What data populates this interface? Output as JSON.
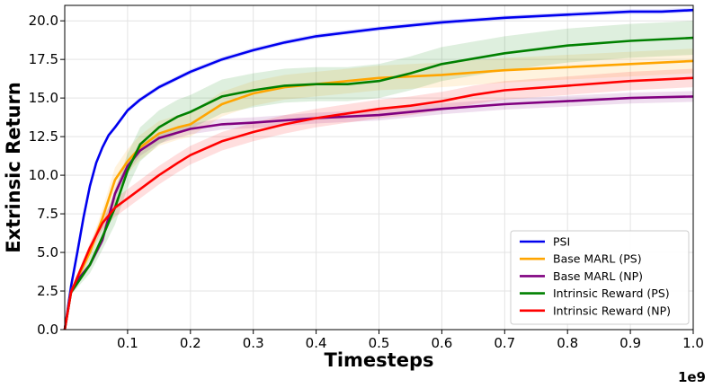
{
  "chart_data": {
    "type": "line",
    "xlabel": "Timesteps",
    "ylabel": "Extrinsic Return",
    "x_multiplier_label": "1e9",
    "xlim": [
      0.0,
      1.0
    ],
    "ylim": [
      0.0,
      21.0
    ],
    "xticks": [
      "0.1",
      "0.2",
      "0.3",
      "0.4",
      "0.5",
      "0.6",
      "0.7",
      "0.8",
      "0.9",
      "1.0"
    ],
    "yticks": [
      "0.0",
      "2.5",
      "5.0",
      "7.5",
      "10.0",
      "12.5",
      "15.0",
      "17.5",
      "20.0"
    ],
    "grid": true,
    "legend_position": "lower-right",
    "series": [
      {
        "name": "PSI",
        "color": "#0000ee",
        "x": [
          0.0,
          0.01,
          0.02,
          0.03,
          0.04,
          0.05,
          0.06,
          0.07,
          0.08,
          0.1,
          0.12,
          0.15,
          0.18,
          0.2,
          0.25,
          0.3,
          0.35,
          0.4,
          0.5,
          0.6,
          0.7,
          0.8,
          0.9,
          0.95,
          1.0
        ],
        "y": [
          0.0,
          2.8,
          5.0,
          7.3,
          9.3,
          10.8,
          11.8,
          12.6,
          13.1,
          14.2,
          14.9,
          15.7,
          16.3,
          16.7,
          17.5,
          18.1,
          18.6,
          19.0,
          19.5,
          19.9,
          20.2,
          20.4,
          20.6,
          20.6,
          20.7
        ],
        "band": 0.15
      },
      {
        "name": "Base MARL (PS)",
        "color": "#ffa500",
        "x": [
          0.0,
          0.01,
          0.02,
          0.04,
          0.06,
          0.08,
          0.1,
          0.12,
          0.15,
          0.18,
          0.2,
          0.25,
          0.3,
          0.35,
          0.4,
          0.45,
          0.5,
          0.6,
          0.7,
          0.8,
          0.9,
          1.0
        ],
        "y": [
          0.0,
          2.5,
          3.3,
          5.0,
          7.2,
          9.7,
          10.9,
          11.8,
          12.7,
          13.1,
          13.3,
          14.6,
          15.3,
          15.7,
          15.9,
          16.1,
          16.3,
          16.5,
          16.8,
          17.0,
          17.2,
          17.4
        ],
        "band": 0.8
      },
      {
        "name": "Base MARL (NP)",
        "color": "#800080",
        "x": [
          0.0,
          0.01,
          0.02,
          0.04,
          0.06,
          0.08,
          0.1,
          0.12,
          0.15,
          0.2,
          0.25,
          0.3,
          0.4,
          0.5,
          0.6,
          0.7,
          0.8,
          0.9,
          1.0
        ],
        "y": [
          0.0,
          2.5,
          3.2,
          4.2,
          5.8,
          8.8,
          10.6,
          11.6,
          12.4,
          13.0,
          13.3,
          13.4,
          13.7,
          13.9,
          14.3,
          14.6,
          14.8,
          15.0,
          15.1
        ],
        "band": 0.35
      },
      {
        "name": "Intrinsic Reward (PS)",
        "color": "#008000",
        "x": [
          0.0,
          0.01,
          0.02,
          0.04,
          0.06,
          0.08,
          0.1,
          0.12,
          0.15,
          0.18,
          0.2,
          0.25,
          0.3,
          0.35,
          0.4,
          0.45,
          0.5,
          0.55,
          0.6,
          0.7,
          0.8,
          0.9,
          1.0
        ],
        "y": [
          0.0,
          2.4,
          3.0,
          4.2,
          6.0,
          7.9,
          10.3,
          12.0,
          13.1,
          13.8,
          14.1,
          15.1,
          15.5,
          15.8,
          15.9,
          15.9,
          16.1,
          16.6,
          17.2,
          17.9,
          18.4,
          18.7,
          18.9
        ],
        "band": 1.1
      },
      {
        "name": "Intrinsic Reward (NP)",
        "color": "#ff0000",
        "x": [
          0.0,
          0.01,
          0.02,
          0.04,
          0.06,
          0.08,
          0.1,
          0.12,
          0.15,
          0.18,
          0.2,
          0.25,
          0.3,
          0.35,
          0.4,
          0.45,
          0.5,
          0.55,
          0.6,
          0.65,
          0.7,
          0.8,
          0.9,
          1.0
        ],
        "y": [
          0.0,
          2.4,
          3.4,
          5.3,
          6.9,
          7.9,
          8.5,
          9.1,
          10.0,
          10.8,
          11.3,
          12.2,
          12.8,
          13.3,
          13.7,
          14.0,
          14.3,
          14.5,
          14.8,
          15.2,
          15.5,
          15.8,
          16.1,
          16.3
        ],
        "band": 0.6
      }
    ]
  }
}
